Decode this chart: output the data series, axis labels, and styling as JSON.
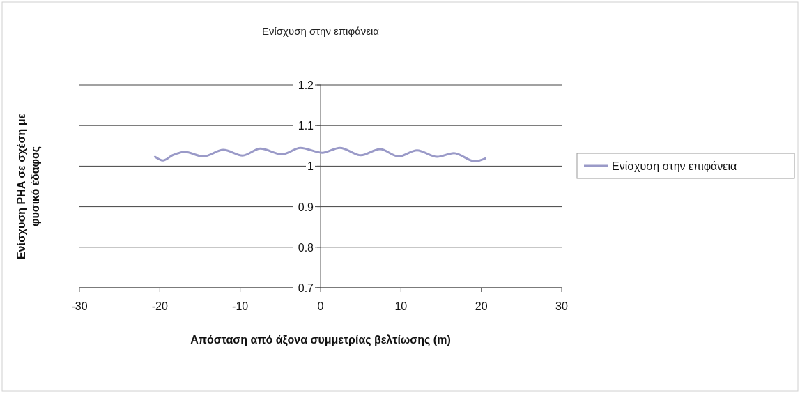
{
  "chart_data": {
    "type": "line",
    "title": "Ενίσχυση στην επιφάνεια",
    "xlabel": "Απόσταση από άξονα συμμετρίας βελτίωσης (m)",
    "ylabel": "Ενίσχυση PHA σε σχέση με φυσικό έδαφος",
    "xlim": [
      -30,
      30
    ],
    "xticks": [
      -30,
      -20,
      -10,
      0,
      10,
      20,
      30
    ],
    "ylim": [
      0.7,
      1.2
    ],
    "yticks": [
      0.7,
      0.8,
      0.9,
      1,
      1.1,
      1.2
    ],
    "grid": "y",
    "legend": "right",
    "series": [
      {
        "name": "Ενίσχυση στην επιφάνεια",
        "color": "#9a9ac8",
        "x": [
          -20.6,
          -19.6,
          -18.4,
          -16.9,
          -14.6,
          -12.1,
          -9.7,
          -7.5,
          -4.8,
          -2.5,
          0.2,
          2.4,
          5.0,
          7.4,
          9.7,
          12.0,
          14.5,
          16.6,
          19.2,
          20.5
        ],
        "values": [
          1.023,
          1.014,
          1.027,
          1.035,
          1.024,
          1.04,
          1.026,
          1.043,
          1.029,
          1.045,
          1.033,
          1.045,
          1.027,
          1.042,
          1.024,
          1.039,
          1.023,
          1.032,
          1.012,
          1.019
        ]
      }
    ]
  }
}
